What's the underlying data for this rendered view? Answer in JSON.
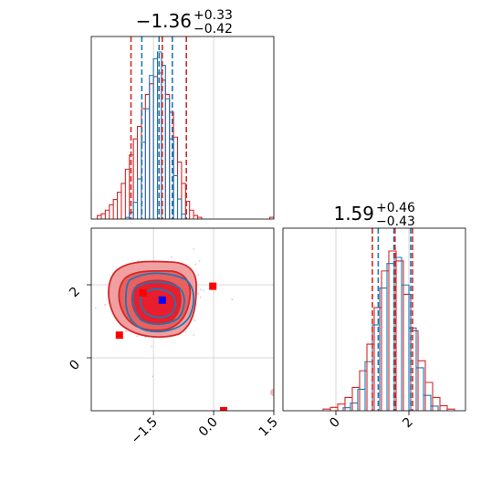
{
  "chart_data": {
    "type": "corner",
    "colors": {
      "blue": "#1f77b4",
      "red": "#d62728",
      "red_fill": "#f0a0a0",
      "red_core": "#e81e2c",
      "grid": "#cccccc",
      "marker_red": "#ff0000",
      "marker_blue": "#0000ff"
    },
    "params": [
      {
        "title": {
          "value": "−1.36",
          "plus": "+0.33",
          "minus": "−0.42"
        },
        "range": [
          -3.05,
          1.5
        ],
        "ticks": [
          -1.5,
          0.0,
          1.5
        ],
        "tick_labels": [
          "−1.5",
          "0.0",
          "1.5"
        ],
        "blue_lines": [
          -1.79,
          -1.36,
          -1.03
        ],
        "red_lines": [
          -2.06,
          -1.28,
          -0.68
        ]
      },
      {
        "title": {
          "value": "1.59",
          "plus": "+0.46",
          "minus": "−0.43"
        },
        "range": [
          -1.45,
          3.55
        ],
        "ticks": [
          0,
          2
        ],
        "tick_labels": [
          "0",
          "2"
        ],
        "blue_lines": [
          1.16,
          1.59,
          2.05
        ],
        "red_lines": [
          1.0,
          1.62,
          2.1
        ]
      }
    ],
    "hist_blue": {
      "p0_centers": [
        -2.15,
        -2.05,
        -1.95,
        -1.85,
        -1.75,
        -1.65,
        -1.55,
        -1.45,
        -1.35,
        -1.25,
        -1.15,
        -1.05,
        -0.95,
        -0.85,
        -0.75
      ],
      "p0_counts": [
        1,
        4,
        10,
        24,
        46,
        66,
        86,
        96,
        100,
        92,
        72,
        48,
        26,
        12,
        3
      ],
      "p1_centers": [
        0.3,
        0.5,
        0.7,
        0.9,
        1.1,
        1.3,
        1.5,
        1.7,
        1.9,
        2.1,
        2.3,
        2.5,
        2.7
      ],
      "p1_counts": [
        2,
        5,
        14,
        32,
        56,
        80,
        96,
        100,
        82,
        54,
        28,
        10,
        3
      ]
    },
    "hist_red": {
      "p0_centers": [
        -2.85,
        -2.75,
        -2.65,
        -2.55,
        -2.45,
        -2.35,
        -2.25,
        -2.15,
        -2.05,
        -1.95,
        -1.85,
        -1.75,
        -1.65,
        -1.55,
        -1.45,
        -1.35,
        -1.25,
        -1.15,
        -1.05,
        -0.95,
        -0.85,
        -0.75,
        -0.65,
        -0.55,
        -0.45,
        -0.35,
        1.45
      ],
      "p0_counts": [
        2,
        3,
        5,
        8,
        11,
        15,
        20,
        28,
        36,
        45,
        52,
        62,
        70,
        76,
        80,
        82,
        78,
        70,
        60,
        46,
        32,
        20,
        10,
        5,
        2,
        1,
        1
      ],
      "p1_centers": [
        -0.25,
        -0.05,
        0.15,
        0.35,
        0.55,
        0.75,
        0.95,
        1.15,
        1.35,
        1.55,
        1.75,
        1.95,
        2.15,
        2.35,
        2.55,
        2.75,
        2.95,
        3.15
      ],
      "p1_counts": [
        1,
        2,
        4,
        8,
        14,
        24,
        40,
        62,
        84,
        96,
        90,
        70,
        48,
        30,
        17,
        8,
        3,
        1
      ]
    },
    "markers": [
      {
        "x": -0.02,
        "y": 1.96,
        "color": "red"
      },
      {
        "x": -2.35,
        "y": 0.62,
        "color": "red"
      },
      {
        "x": 0.25,
        "y": -1.45,
        "color": "red"
      },
      {
        "x": -1.76,
        "y": 1.78,
        "color": "red"
      },
      {
        "x": -1.28,
        "y": 1.58,
        "color": "blue"
      }
    ]
  }
}
